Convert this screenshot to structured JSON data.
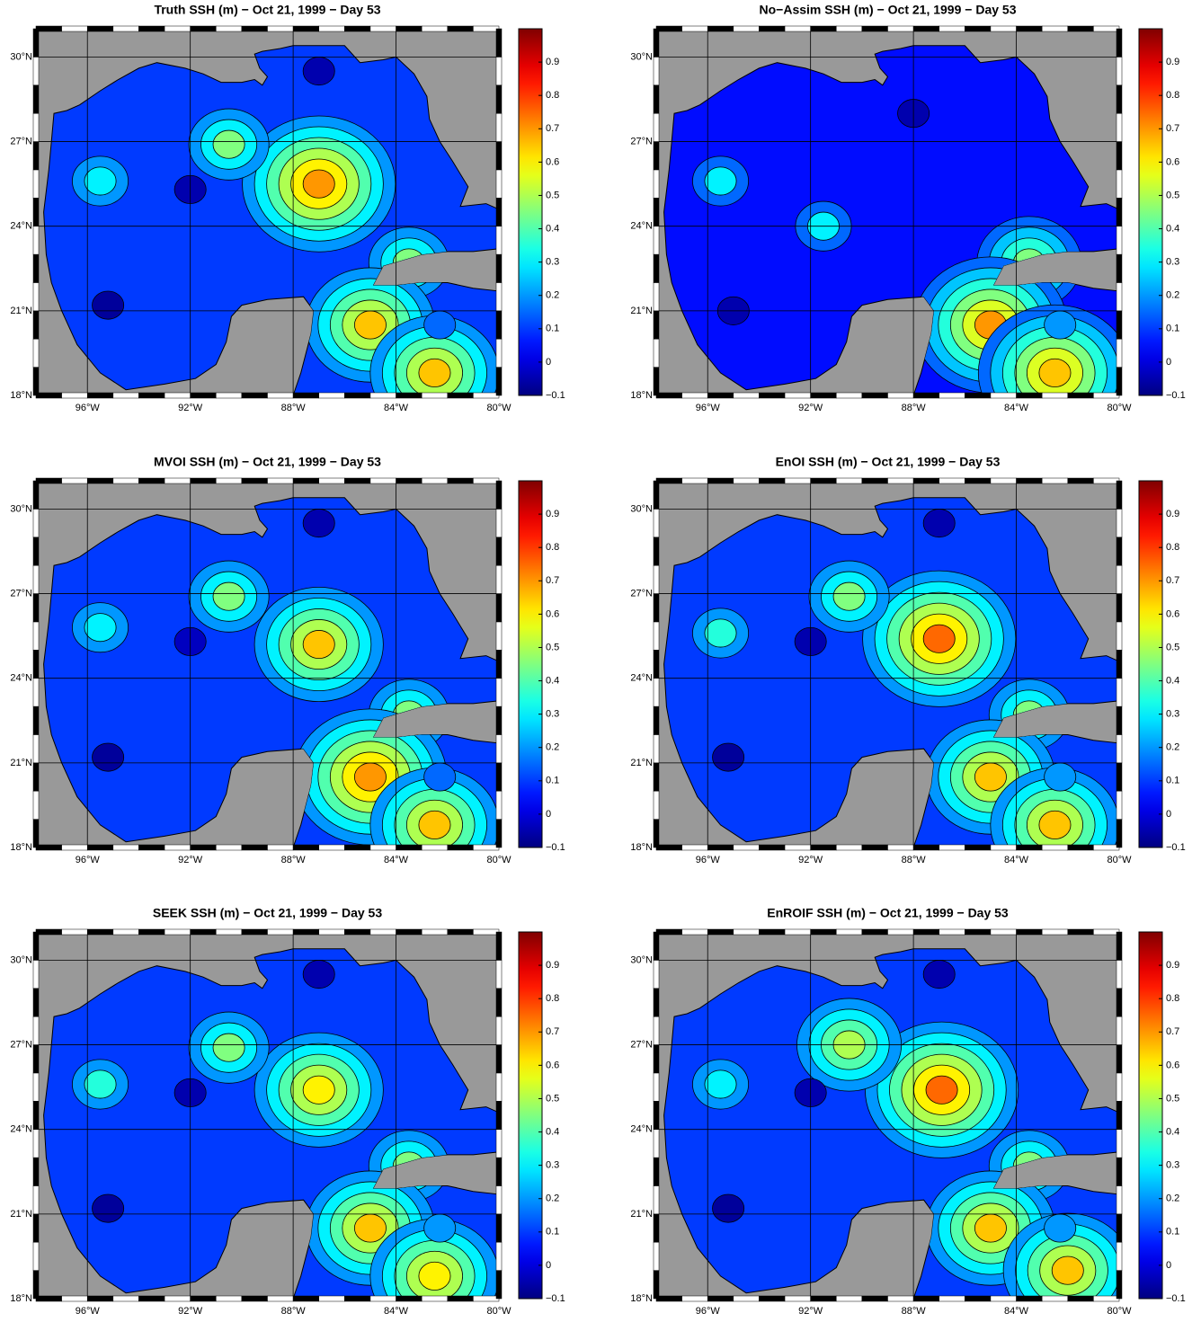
{
  "chart_data": [
    {
      "type": "contour",
      "title": "Truth SSH (m) − Oct 21, 1999 − Day 53",
      "xlim": [
        -98,
        -80
      ],
      "ylim": [
        18,
        31
      ],
      "xticks": [
        {
          "value": -96,
          "label": "96°W"
        },
        {
          "value": -92,
          "label": "92°W"
        },
        {
          "value": -88,
          "label": "88°W"
        },
        {
          "value": -84,
          "label": "84°W"
        },
        {
          "value": -80,
          "label": "80°W"
        }
      ],
      "yticks": [
        {
          "value": 18,
          "label": "18°N"
        },
        {
          "value": 21,
          "label": "21°N"
        },
        {
          "value": 24,
          "label": "24°N"
        },
        {
          "value": 27,
          "label": "27°N"
        },
        {
          "value": 30,
          "label": "30°N"
        }
      ],
      "clim": [
        -0.1,
        1.0
      ],
      "cticks": [
        {
          "value": -0.1,
          "label": "−0.1"
        },
        0,
        0.1,
        0.2,
        0.3,
        0.4,
        0.5,
        0.6,
        0.7,
        0.8,
        0.9
      ],
      "colormap": "jet",
      "background": 0.1,
      "features": [
        {
          "lon": -87,
          "lat": 25.5,
          "value": 0.7
        },
        {
          "lon": -90.5,
          "lat": 26.9,
          "value": 0.45
        },
        {
          "lon": -95.5,
          "lat": 25.6,
          "value": 0.3
        },
        {
          "lon": -92,
          "lat": 25.3,
          "value": -0.05
        },
        {
          "lon": -95.2,
          "lat": 21.2,
          "value": -0.07
        },
        {
          "lon": -87,
          "lat": 29.5,
          "value": -0.05
        },
        {
          "lon": -83.5,
          "lat": 22.7,
          "value": 0.45
        },
        {
          "lon": -85,
          "lat": 20.5,
          "value": 0.65
        },
        {
          "lon": -82.5,
          "lat": 18.8,
          "value": 0.65
        },
        {
          "lon": -82.3,
          "lat": 20.5,
          "value": 0.15
        }
      ]
    },
    {
      "type": "contour",
      "title": "No−Assim SSH (m) − Oct 21, 1999 − Day 53",
      "xlim": [
        -98,
        -80
      ],
      "ylim": [
        18,
        31
      ],
      "xticks": [
        {
          "value": -96,
          "label": "96°W"
        },
        {
          "value": -92,
          "label": "92°W"
        },
        {
          "value": -88,
          "label": "88°W"
        },
        {
          "value": -84,
          "label": "84°W"
        },
        {
          "value": -80,
          "label": "80°W"
        }
      ],
      "yticks": [
        {
          "value": 18,
          "label": "18°N"
        },
        {
          "value": 21,
          "label": "21°N"
        },
        {
          "value": 24,
          "label": "24°N"
        },
        {
          "value": 27,
          "label": "27°N"
        },
        {
          "value": 30,
          "label": "30°N"
        }
      ],
      "clim": [
        -0.1,
        1.0
      ],
      "cticks": [
        {
          "value": -0.1,
          "label": "−0.1"
        },
        0,
        0.1,
        0.2,
        0.3,
        0.4,
        0.5,
        0.6,
        0.7,
        0.8,
        0.9
      ],
      "colormap": "jet",
      "background": 0.05,
      "features": [
        {
          "lon": -95.5,
          "lat": 25.6,
          "value": 0.3
        },
        {
          "lon": -91.5,
          "lat": 24,
          "value": 0.3
        },
        {
          "lon": -95,
          "lat": 21,
          "value": -0.05
        },
        {
          "lon": -88,
          "lat": 28,
          "value": -0.05
        },
        {
          "lon": -83.5,
          "lat": 22.7,
          "value": 0.45
        },
        {
          "lon": -85,
          "lat": 20.5,
          "value": 0.7
        },
        {
          "lon": -82.5,
          "lat": 18.8,
          "value": 0.65
        },
        {
          "lon": -82.3,
          "lat": 20.5,
          "value": 0.2
        }
      ]
    },
    {
      "type": "contour",
      "title": "MVOI SSH (m) − Oct 21, 1999 − Day 53",
      "xlim": [
        -98,
        -80
      ],
      "ylim": [
        18,
        31
      ],
      "xticks": [
        {
          "value": -96,
          "label": "96°W"
        },
        {
          "value": -92,
          "label": "92°W"
        },
        {
          "value": -88,
          "label": "88°W"
        },
        {
          "value": -84,
          "label": "84°W"
        },
        {
          "value": -80,
          "label": "80°W"
        }
      ],
      "yticks": [
        {
          "value": 18,
          "label": "18°N"
        },
        {
          "value": 21,
          "label": "21°N"
        },
        {
          "value": 24,
          "label": "24°N"
        },
        {
          "value": 27,
          "label": "27°N"
        },
        {
          "value": 30,
          "label": "30°N"
        }
      ],
      "clim": [
        -0.1,
        1.0
      ],
      "cticks": [
        {
          "value": -0.1,
          "label": "−0.1"
        },
        0,
        0.1,
        0.2,
        0.3,
        0.4,
        0.5,
        0.6,
        0.7,
        0.8,
        0.9
      ],
      "colormap": "jet",
      "background": 0.1,
      "features": [
        {
          "lon": -87,
          "lat": 25.2,
          "value": 0.65
        },
        {
          "lon": -90.5,
          "lat": 26.9,
          "value": 0.45
        },
        {
          "lon": -95.5,
          "lat": 25.8,
          "value": 0.3
        },
        {
          "lon": -92,
          "lat": 25.3,
          "value": -0.03
        },
        {
          "lon": -95.2,
          "lat": 21.2,
          "value": -0.07
        },
        {
          "lon": -87,
          "lat": 29.5,
          "value": -0.05
        },
        {
          "lon": -83.5,
          "lat": 22.7,
          "value": 0.45
        },
        {
          "lon": -85,
          "lat": 20.5,
          "value": 0.7
        },
        {
          "lon": -82.5,
          "lat": 18.8,
          "value": 0.65
        },
        {
          "lon": -82.3,
          "lat": 20.5,
          "value": 0.15
        }
      ]
    },
    {
      "type": "contour",
      "title": "EnOI SSH (m) − Oct 21, 1999 − Day 53",
      "xlim": [
        -98,
        -80
      ],
      "ylim": [
        18,
        31
      ],
      "xticks": [
        {
          "value": -96,
          "label": "96°W"
        },
        {
          "value": -92,
          "label": "92°W"
        },
        {
          "value": -88,
          "label": "88°W"
        },
        {
          "value": -84,
          "label": "84°W"
        },
        {
          "value": -80,
          "label": "80°W"
        }
      ],
      "yticks": [
        {
          "value": 18,
          "label": "18°N"
        },
        {
          "value": 21,
          "label": "21°N"
        },
        {
          "value": 24,
          "label": "24°N"
        },
        {
          "value": 27,
          "label": "27°N"
        },
        {
          "value": 30,
          "label": "30°N"
        }
      ],
      "clim": [
        -0.1,
        1.0
      ],
      "cticks": [
        {
          "value": -0.1,
          "label": "−0.1"
        },
        0,
        0.1,
        0.2,
        0.3,
        0.4,
        0.5,
        0.6,
        0.7,
        0.8,
        0.9
      ],
      "colormap": "jet",
      "background": 0.1,
      "features": [
        {
          "lon": -87,
          "lat": 25.4,
          "value": 0.75
        },
        {
          "lon": -90.5,
          "lat": 26.9,
          "value": 0.45
        },
        {
          "lon": -95.5,
          "lat": 25.6,
          "value": 0.35
        },
        {
          "lon": -92,
          "lat": 25.3,
          "value": -0.05
        },
        {
          "lon": -95.2,
          "lat": 21.2,
          "value": -0.07
        },
        {
          "lon": -87,
          "lat": 29.5,
          "value": -0.05
        },
        {
          "lon": -83.5,
          "lat": 22.7,
          "value": 0.45
        },
        {
          "lon": -85,
          "lat": 20.5,
          "value": 0.65
        },
        {
          "lon": -82.5,
          "lat": 18.8,
          "value": 0.65
        },
        {
          "lon": -82.3,
          "lat": 20.5,
          "value": 0.2
        }
      ]
    },
    {
      "type": "contour",
      "title": "SEEK SSH (m) − Oct 21, 1999 − Day 53",
      "xlim": [
        -98,
        -80
      ],
      "ylim": [
        18,
        31
      ],
      "xticks": [
        {
          "value": -96,
          "label": "96°W"
        },
        {
          "value": -92,
          "label": "92°W"
        },
        {
          "value": -88,
          "label": "88°W"
        },
        {
          "value": -84,
          "label": "84°W"
        },
        {
          "value": -80,
          "label": "80°W"
        }
      ],
      "yticks": [
        {
          "value": 18,
          "label": "18°N"
        },
        {
          "value": 21,
          "label": "21°N"
        },
        {
          "value": 24,
          "label": "24°N"
        },
        {
          "value": 27,
          "label": "27°N"
        },
        {
          "value": 30,
          "label": "30°N"
        }
      ],
      "clim": [
        -0.1,
        1.0
      ],
      "cticks": [
        {
          "value": -0.1,
          "label": "−0.1"
        },
        0,
        0.1,
        0.2,
        0.3,
        0.4,
        0.5,
        0.6,
        0.7,
        0.8,
        0.9
      ],
      "colormap": "jet",
      "background": 0.1,
      "features": [
        {
          "lon": -87,
          "lat": 25.4,
          "value": 0.6
        },
        {
          "lon": -90.5,
          "lat": 26.9,
          "value": 0.45
        },
        {
          "lon": -95.5,
          "lat": 25.6,
          "value": 0.35
        },
        {
          "lon": -92,
          "lat": 25.3,
          "value": -0.05
        },
        {
          "lon": -95.2,
          "lat": 21.2,
          "value": -0.07
        },
        {
          "lon": -87,
          "lat": 29.5,
          "value": -0.05
        },
        {
          "lon": -83.5,
          "lat": 22.7,
          "value": 0.45
        },
        {
          "lon": -85,
          "lat": 20.5,
          "value": 0.65
        },
        {
          "lon": -82.5,
          "lat": 18.8,
          "value": 0.6
        },
        {
          "lon": -82.3,
          "lat": 20.5,
          "value": 0.2
        }
      ]
    },
    {
      "type": "contour",
      "title": "EnROIF SSH (m) − Oct 21, 1999 − Day 53",
      "xlim": [
        -98,
        -80
      ],
      "ylim": [
        18,
        31
      ],
      "xticks": [
        {
          "value": -96,
          "label": "96°W"
        },
        {
          "value": -92,
          "label": "92°W"
        },
        {
          "value": -88,
          "label": "88°W"
        },
        {
          "value": -84,
          "label": "84°W"
        },
        {
          "value": -80,
          "label": "80°W"
        }
      ],
      "yticks": [
        {
          "value": 18,
          "label": "18°N"
        },
        {
          "value": 21,
          "label": "21°N"
        },
        {
          "value": 24,
          "label": "24°N"
        },
        {
          "value": 27,
          "label": "27°N"
        },
        {
          "value": 30,
          "label": "30°N"
        }
      ],
      "clim": [
        -0.1,
        1.0
      ],
      "cticks": [
        {
          "value": -0.1,
          "label": "−0.1"
        },
        0,
        0.1,
        0.2,
        0.3,
        0.4,
        0.5,
        0.6,
        0.7,
        0.8,
        0.9
      ],
      "colormap": "jet",
      "background": 0.1,
      "features": [
        {
          "lon": -86.9,
          "lat": 25.4,
          "value": 0.75
        },
        {
          "lon": -90.5,
          "lat": 27,
          "value": 0.5
        },
        {
          "lon": -95.5,
          "lat": 25.6,
          "value": 0.3
        },
        {
          "lon": -92,
          "lat": 25.3,
          "value": -0.05
        },
        {
          "lon": -95.2,
          "lat": 21.2,
          "value": -0.07
        },
        {
          "lon": -87,
          "lat": 29.5,
          "value": -0.05
        },
        {
          "lon": -83.5,
          "lat": 22.7,
          "value": 0.45
        },
        {
          "lon": -85,
          "lat": 20.5,
          "value": 0.65
        },
        {
          "lon": -82,
          "lat": 19,
          "value": 0.65
        },
        {
          "lon": -82.3,
          "lat": 20.5,
          "value": 0.2
        }
      ]
    }
  ]
}
